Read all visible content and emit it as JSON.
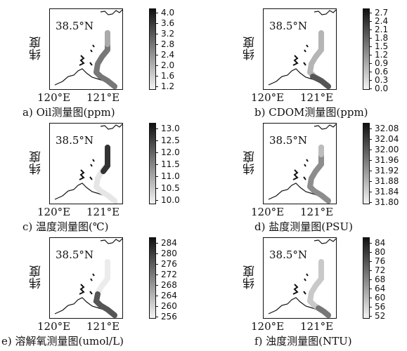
{
  "shared": {
    "ylabel": "纬度",
    "lat_label": "38.5°N",
    "xtick_left": "120°E",
    "xtick_right": "121°E"
  },
  "panels": [
    {
      "caption": "a) Oil测量图(ppm)",
      "ticks": [
        "4.0",
        "3.6",
        "3.2",
        "2.8",
        "2.4",
        "2.0",
        "1.6",
        "1.2"
      ],
      "gradient": "dark-top",
      "track": "mid"
    },
    {
      "caption": "b) CDOM测量图(ppm)",
      "ticks": [
        "2.7",
        "2.4",
        "2.1",
        "1.8",
        "1.5",
        "1.2",
        "0.9",
        "0.6",
        "0.3",
        "0.0"
      ],
      "gradient": "dark-top",
      "track": "light"
    },
    {
      "caption": "c) 温度测量图(℃)",
      "ticks": [
        "13.0",
        "12.5",
        "12.0",
        "11.5",
        "11.0",
        "10.5",
        "10.0"
      ],
      "gradient": "dark-top",
      "track": "dark-north"
    },
    {
      "caption": "d) 盐度测量图(PSU)",
      "ticks": [
        "32.08",
        "32.04",
        "32.00",
        "31.96",
        "31.92",
        "31.88",
        "31.84",
        "31.80"
      ],
      "gradient": "dark-top",
      "track": "mid"
    },
    {
      "caption": "e) 溶解氧测量图(umol/L)",
      "ticks": [
        "284",
        "280",
        "276",
        "272",
        "268",
        "264",
        "260",
        "256"
      ],
      "gradient": "dark-top",
      "track": "dark-south"
    },
    {
      "caption": "f) 浊度测量图(NTU)",
      "ticks": [
        "84",
        "80",
        "76",
        "72",
        "68",
        "64",
        "60",
        "56",
        "52"
      ],
      "gradient": "dark-top",
      "track": "light"
    }
  ],
  "colors": {
    "colorbar_top": "#111111",
    "colorbar_bottom": "#f4f4f4",
    "coast": "#111111",
    "frame": "#111111"
  }
}
